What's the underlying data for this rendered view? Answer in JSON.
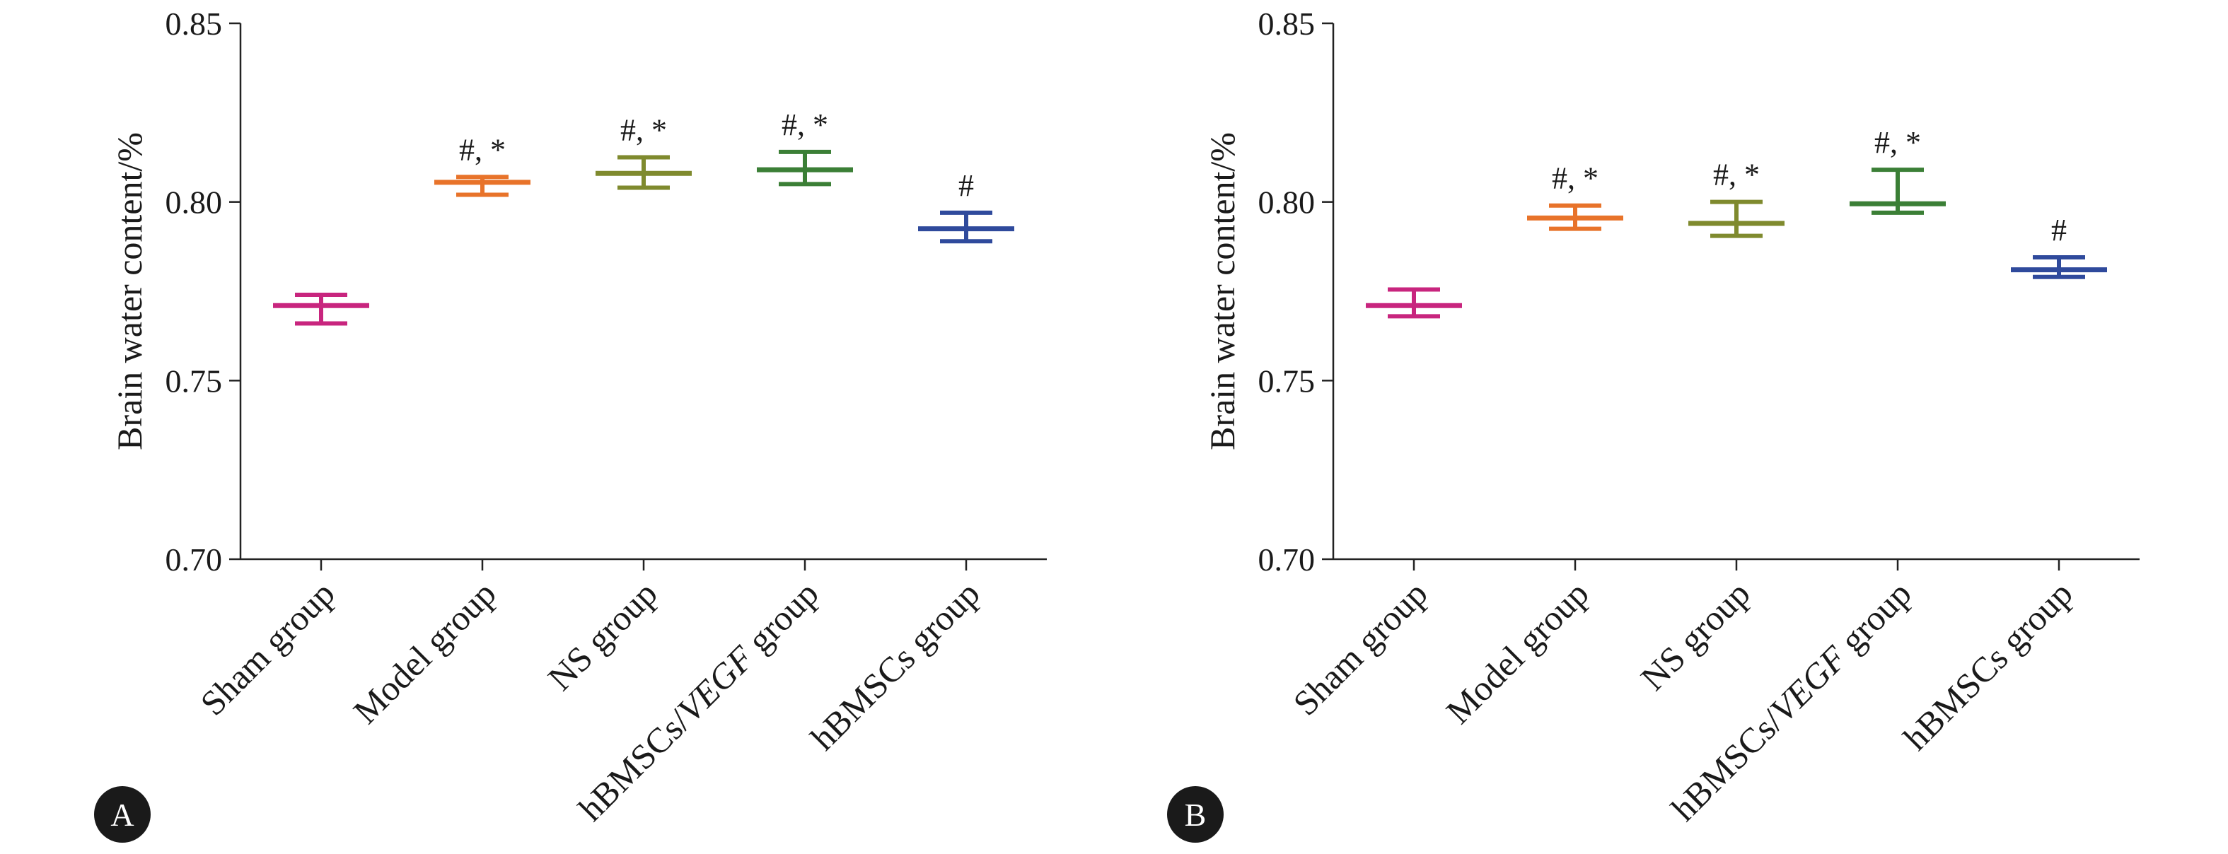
{
  "panels": [
    {
      "label": "A",
      "chart_data": {
        "type": "scatter",
        "title": "",
        "xlabel": "",
        "ylabel": "Brain water content/%",
        "ylim": [
          0.7,
          0.85
        ],
        "yticks": [
          "0.70",
          "0.75",
          "0.80",
          "0.85"
        ],
        "categories": [
          {
            "pre": "Sham group"
          },
          {
            "pre": "Model group"
          },
          {
            "pre": "NS group"
          },
          {
            "pre": "hBMSCs/",
            "italic": "VEGF",
            "post": " group"
          },
          {
            "pre": "hBMSCs group"
          }
        ],
        "series": [
          {
            "mean": 0.771,
            "upper": 0.774,
            "lower": 0.766,
            "annotation": "",
            "color": "#c8257e"
          },
          {
            "mean": 0.8055,
            "upper": 0.807,
            "lower": 0.802,
            "annotation": "#, *",
            "color": "#e8732a"
          },
          {
            "mean": 0.808,
            "upper": 0.8125,
            "lower": 0.804,
            "annotation": "#, *",
            "color": "#7f8a2e"
          },
          {
            "mean": 0.809,
            "upper": 0.814,
            "lower": 0.805,
            "annotation": "#, *",
            "color": "#3b7f36"
          },
          {
            "mean": 0.7925,
            "upper": 0.797,
            "lower": 0.789,
            "annotation": "#",
            "color": "#2f4a9c"
          }
        ],
        "grid": false,
        "legend": "none"
      }
    },
    {
      "label": "B",
      "chart_data": {
        "type": "scatter",
        "title": "",
        "xlabel": "",
        "ylabel": "Brain water content/%",
        "ylim": [
          0.7,
          0.85
        ],
        "yticks": [
          "0.70",
          "0.75",
          "0.80",
          "0.85"
        ],
        "categories": [
          {
            "pre": "Sham group"
          },
          {
            "pre": "Model group"
          },
          {
            "pre": "NS group"
          },
          {
            "pre": "hBMSCs/",
            "italic": "VEGF",
            "post": " group"
          },
          {
            "pre": "hBMSCs group"
          }
        ],
        "series": [
          {
            "mean": 0.771,
            "upper": 0.7755,
            "lower": 0.768,
            "annotation": "",
            "color": "#c8257e"
          },
          {
            "mean": 0.7955,
            "upper": 0.799,
            "lower": 0.7925,
            "annotation": "#, *",
            "color": "#e8732a"
          },
          {
            "mean": 0.794,
            "upper": 0.8,
            "lower": 0.7905,
            "annotation": "#, *",
            "color": "#7f8a2e"
          },
          {
            "mean": 0.7995,
            "upper": 0.809,
            "lower": 0.797,
            "annotation": "#, *",
            "color": "#3b7f36"
          },
          {
            "mean": 0.781,
            "upper": 0.7845,
            "lower": 0.779,
            "annotation": "#",
            "color": "#2f4a9c"
          }
        ],
        "grid": false,
        "legend": "none"
      }
    }
  ]
}
